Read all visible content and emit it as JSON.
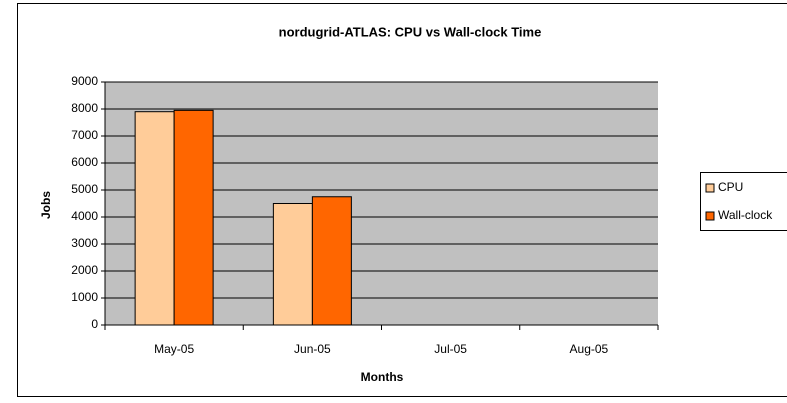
{
  "chart_data": {
    "type": "bar",
    "title": "nordugrid-ATLAS: CPU vs Wall-clock Time",
    "xlabel": "Months",
    "ylabel": "Jobs",
    "categories": [
      "May-05",
      "Jun-05",
      "Jul-05",
      "Aug-05"
    ],
    "series": [
      {
        "name": "CPU",
        "color": "#ffcc99",
        "values": [
          7900,
          4500,
          null,
          null
        ]
      },
      {
        "name": "Wall-clock",
        "color": "#ff6600",
        "values": [
          7950,
          4750,
          null,
          null
        ]
      }
    ],
    "ylim": [
      0,
      9000
    ],
    "yticks": [
      0,
      1000,
      2000,
      3000,
      4000,
      5000,
      6000,
      7000,
      8000,
      9000
    ],
    "grid": true,
    "legend": "right"
  }
}
